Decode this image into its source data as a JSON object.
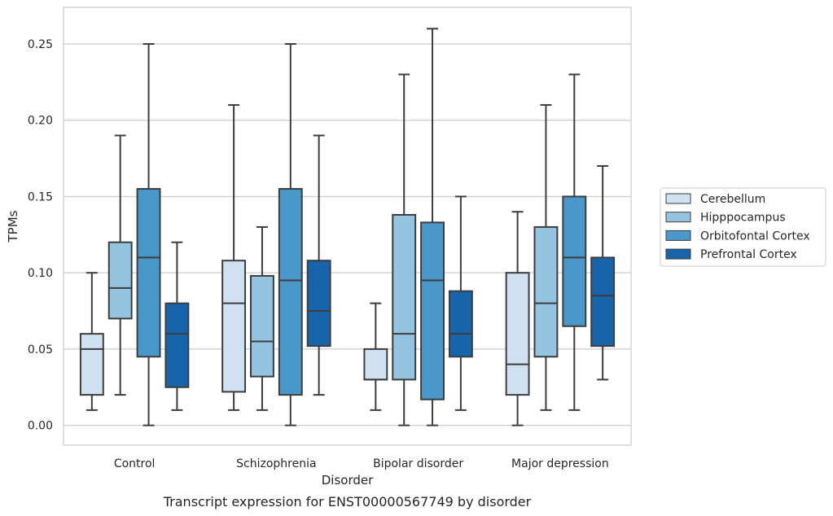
{
  "chart_data": {
    "type": "box",
    "title": "",
    "caption": "Transcript expression for ENST00000567749 by disorder",
    "xlabel": "Disorder",
    "ylabel": "TPMs",
    "ylim": [
      -0.013,
      0.274
    ],
    "yticks": [
      0.0,
      0.05,
      0.1,
      0.15,
      0.2,
      0.25
    ],
    "ytick_labels": [
      "0.00",
      "0.05",
      "0.10",
      "0.15",
      "0.20",
      "0.25"
    ],
    "grid": "horizontal",
    "legend_position": "right",
    "categories": [
      "Control",
      "Schizophrenia",
      "Bipolar disorder",
      "Major depression"
    ],
    "series": [
      {
        "name": "Cerebellum",
        "color": "#d0e1f2",
        "boxes": [
          {
            "whisker_low": 0.01,
            "q1": 0.02,
            "median": 0.05,
            "q3": 0.06,
            "whisker_high": 0.1
          },
          {
            "whisker_low": 0.01,
            "q1": 0.022,
            "median": 0.08,
            "q3": 0.108,
            "whisker_high": 0.21
          },
          {
            "whisker_low": 0.01,
            "q1": 0.03,
            "median": 0.03,
            "q3": 0.05,
            "whisker_high": 0.08
          },
          {
            "whisker_low": 0.0,
            "q1": 0.02,
            "median": 0.04,
            "q3": 0.1,
            "whisker_high": 0.14
          }
        ]
      },
      {
        "name": "Hipppocampus",
        "color": "#94c4df",
        "boxes": [
          {
            "whisker_low": 0.02,
            "q1": 0.07,
            "median": 0.09,
            "q3": 0.12,
            "whisker_high": 0.19
          },
          {
            "whisker_low": 0.01,
            "q1": 0.032,
            "median": 0.055,
            "q3": 0.098,
            "whisker_high": 0.13
          },
          {
            "whisker_low": 0.0,
            "q1": 0.03,
            "median": 0.06,
            "q3": 0.138,
            "whisker_high": 0.23
          },
          {
            "whisker_low": 0.01,
            "q1": 0.045,
            "median": 0.08,
            "q3": 0.13,
            "whisker_high": 0.21
          }
        ]
      },
      {
        "name": "Orbitofontal Cortex",
        "color": "#4a98c9",
        "boxes": [
          {
            "whisker_low": 0.0,
            "q1": 0.045,
            "median": 0.11,
            "q3": 0.155,
            "whisker_high": 0.25
          },
          {
            "whisker_low": 0.0,
            "q1": 0.02,
            "median": 0.095,
            "q3": 0.155,
            "whisker_high": 0.25
          },
          {
            "whisker_low": 0.0,
            "q1": 0.017,
            "median": 0.095,
            "q3": 0.133,
            "whisker_high": 0.26
          },
          {
            "whisker_low": 0.01,
            "q1": 0.065,
            "median": 0.11,
            "q3": 0.15,
            "whisker_high": 0.23
          }
        ]
      },
      {
        "name": "Prefrontal Cortex",
        "color": "#1764ab",
        "boxes": [
          {
            "whisker_low": 0.01,
            "q1": 0.025,
            "median": 0.06,
            "q3": 0.08,
            "whisker_high": 0.12
          },
          {
            "whisker_low": 0.02,
            "q1": 0.052,
            "median": 0.075,
            "q3": 0.108,
            "whisker_high": 0.19
          },
          {
            "whisker_low": 0.01,
            "q1": 0.045,
            "median": 0.06,
            "q3": 0.088,
            "whisker_high": 0.15
          },
          {
            "whisker_low": 0.03,
            "q1": 0.052,
            "median": 0.085,
            "q3": 0.11,
            "whisker_high": 0.17
          }
        ]
      }
    ]
  }
}
